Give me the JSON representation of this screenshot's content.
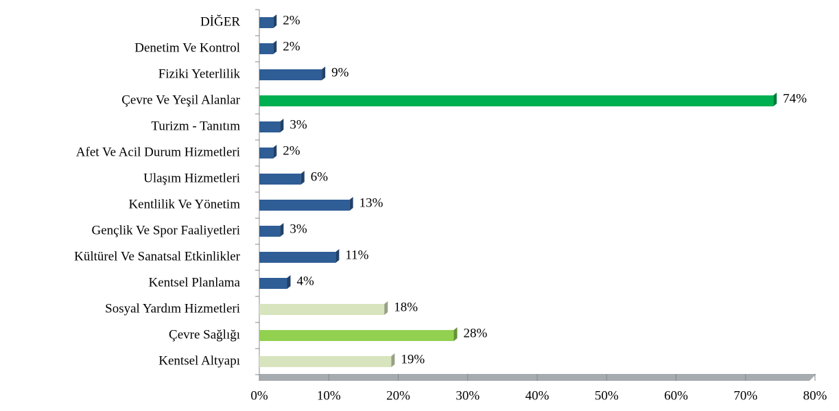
{
  "chart_data": {
    "type": "bar",
    "orientation": "horizontal",
    "categories": [
      "DİĞER",
      "Denetim Ve Kontrol",
      "Fiziki Yeterlilik",
      "Çevre Ve Yeşil Alanlar",
      "Turizm - Tanıtım",
      "Afet Ve Acil Durum Hizmetleri",
      "Ulaşım Hizmetleri",
      "Kentlilik Ve Yönetim",
      "Gençlik Ve Spor Faaliyetleri",
      "Kültürel Ve Sanatsal Etkinlikler",
      "Kentsel Planlama",
      "Sosyal Yardım Hizmetleri",
      "Çevre Sağlığı",
      "Kentsel Altyapı"
    ],
    "values": [
      2,
      2,
      9,
      74,
      3,
      2,
      6,
      13,
      3,
      11,
      4,
      18,
      28,
      19
    ],
    "value_labels": [
      "2%",
      "2%",
      "9%",
      "74%",
      "3%",
      "2%",
      "6%",
      "13%",
      "3%",
      "11%",
      "4%",
      "18%",
      "28%",
      "19%"
    ],
    "colors": [
      "#2f5d96",
      "#2f5d96",
      "#2f5d96",
      "#00b050",
      "#2f5d96",
      "#2f5d96",
      "#2f5d96",
      "#2f5d96",
      "#2f5d96",
      "#2f5d96",
      "#2f5d96",
      "#d7e4bd",
      "#92d050",
      "#d7e4bd"
    ],
    "xlim": [
      0,
      80
    ],
    "xticks": [
      {
        "value": 0,
        "label": "0%"
      },
      {
        "value": 10,
        "label": "10%"
      },
      {
        "value": 20,
        "label": "20%"
      },
      {
        "value": 30,
        "label": "30%"
      },
      {
        "value": 40,
        "label": "40%"
      },
      {
        "value": 50,
        "label": "50%"
      },
      {
        "value": 60,
        "label": "60%"
      },
      {
        "value": 70,
        "label": "70%"
      },
      {
        "value": 80,
        "label": "80%"
      }
    ]
  }
}
